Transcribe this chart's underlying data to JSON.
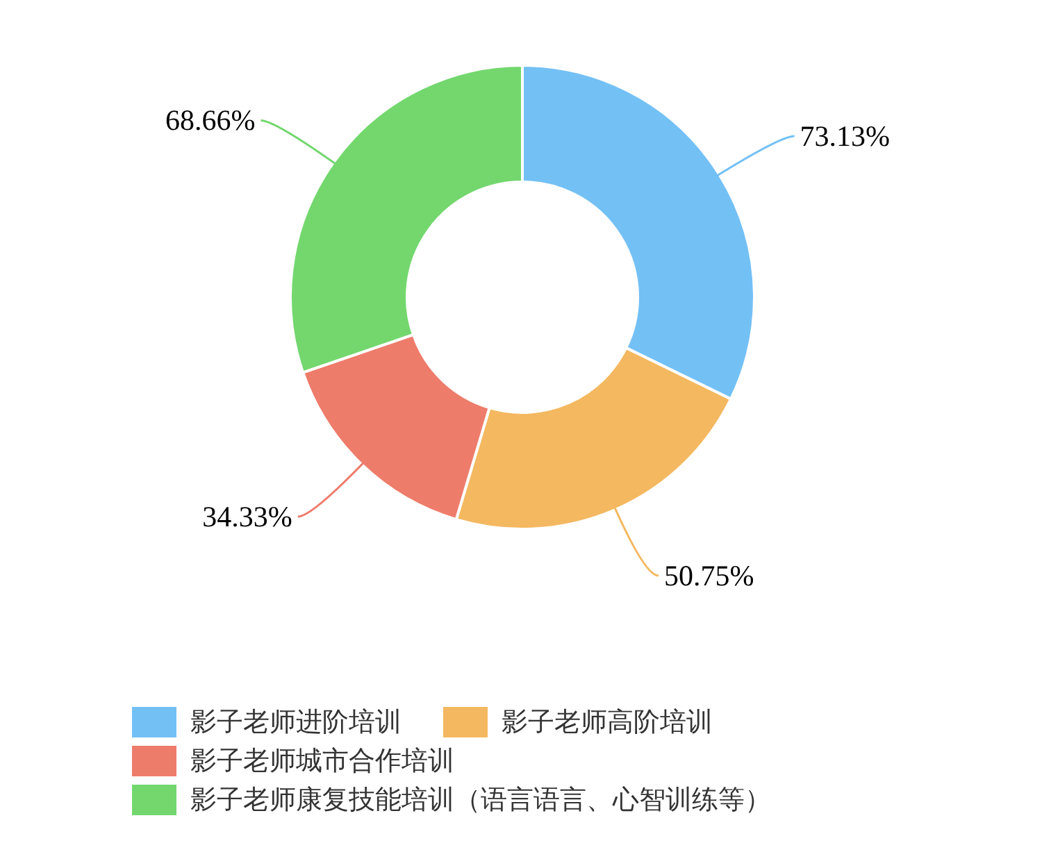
{
  "chart_data": {
    "type": "donut",
    "categories": [
      "影子老师进阶培训",
      "影子老师高阶培训",
      "影子老师城市合作培训",
      "影子老师康复技能培训（语言语言、心智训练等）"
    ],
    "values": [
      73.13,
      50.75,
      34.33,
      68.66
    ],
    "value_labels": [
      "73.13%",
      "50.75%",
      "34.33%",
      "68.66%"
    ],
    "colors": [
      "#73c0f5",
      "#f4b860",
      "#ee7c6b",
      "#73d76e"
    ],
    "legend": "bottom"
  }
}
